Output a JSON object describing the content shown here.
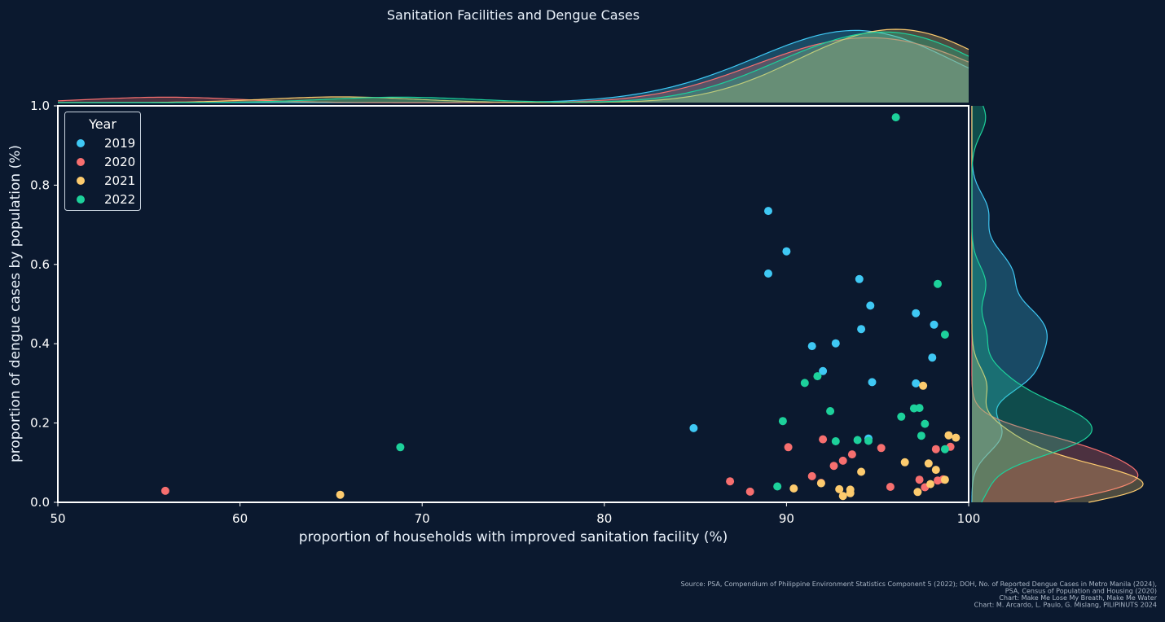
{
  "chart_data": {
    "type": "scatter",
    "title": "Sanitation Facilities and Dengue Cases",
    "xlabel": "proportion of households with improved sanitation facility (%)",
    "ylabel": "proportion of dengue cases by population (%)",
    "xlim": [
      50,
      100
    ],
    "ylim": [
      0,
      1.0
    ],
    "xticks": [
      "50",
      "60",
      "70",
      "80",
      "90",
      "100"
    ],
    "yticks": [
      "0.0",
      "0.2",
      "0.4",
      "0.6",
      "0.8",
      "1.0"
    ],
    "grid": false,
    "legend": {
      "title": "Year",
      "placement": "top-left"
    },
    "marginal_density": {
      "top": true,
      "right": true
    },
    "series": [
      {
        "name": "2019",
        "color": "#3fc8f4",
        "points": [
          [
            84.9,
            0.187
          ],
          [
            89.0,
            0.735
          ],
          [
            90.0,
            0.633
          ],
          [
            89.0,
            0.577
          ],
          [
            94.0,
            0.563
          ],
          [
            94.6,
            0.496
          ],
          [
            97.1,
            0.477
          ],
          [
            98.1,
            0.448
          ],
          [
            94.1,
            0.437
          ],
          [
            91.4,
            0.394
          ],
          [
            92.7,
            0.401
          ],
          [
            98.0,
            0.365
          ],
          [
            92.0,
            0.331
          ],
          [
            94.7,
            0.303
          ],
          [
            97.1,
            0.3
          ],
          [
            94.5,
            0.161
          ]
        ]
      },
      {
        "name": "2020",
        "color": "#f76f6f",
        "points": [
          [
            55.9,
            0.029
          ],
          [
            86.9,
            0.053
          ],
          [
            88.0,
            0.027
          ],
          [
            90.1,
            0.139
          ],
          [
            91.4,
            0.066
          ],
          [
            91.9,
            0.049
          ],
          [
            92.0,
            0.159
          ],
          [
            92.6,
            0.092
          ],
          [
            93.1,
            0.105
          ],
          [
            93.6,
            0.121
          ],
          [
            95.2,
            0.137
          ],
          [
            95.7,
            0.039
          ],
          [
            97.3,
            0.057
          ],
          [
            97.6,
            0.038
          ],
          [
            98.2,
            0.134
          ],
          [
            98.3,
            0.055
          ],
          [
            98.6,
            0.058
          ],
          [
            99.0,
            0.14
          ]
        ]
      },
      {
        "name": "2021",
        "color": "#fdcb6e",
        "points": [
          [
            65.5,
            0.019
          ],
          [
            90.4,
            0.035
          ],
          [
            91.9,
            0.048
          ],
          [
            92.9,
            0.033
          ],
          [
            93.1,
            0.016
          ],
          [
            93.5,
            0.023
          ],
          [
            93.5,
            0.032
          ],
          [
            94.1,
            0.077
          ],
          [
            96.5,
            0.101
          ],
          [
            97.2,
            0.026
          ],
          [
            97.5,
            0.294
          ],
          [
            97.8,
            0.098
          ],
          [
            97.9,
            0.046
          ],
          [
            98.2,
            0.082
          ],
          [
            98.7,
            0.057
          ],
          [
            98.9,
            0.169
          ],
          [
            99.3,
            0.163
          ]
        ]
      },
      {
        "name": "2022",
        "color": "#1dd19b",
        "points": [
          [
            68.8,
            0.139
          ],
          [
            89.5,
            0.04
          ],
          [
            89.8,
            0.205
          ],
          [
            91.0,
            0.301
          ],
          [
            91.7,
            0.318
          ],
          [
            92.4,
            0.23
          ],
          [
            92.7,
            0.154
          ],
          [
            93.9,
            0.157
          ],
          [
            94.5,
            0.155
          ],
          [
            96.0,
            0.971
          ],
          [
            96.3,
            0.216
          ],
          [
            97.0,
            0.237
          ],
          [
            97.3,
            0.238
          ],
          [
            97.4,
            0.168
          ],
          [
            97.6,
            0.198
          ],
          [
            98.3,
            0.551
          ],
          [
            98.7,
            0.423
          ],
          [
            98.7,
            0.134
          ]
        ]
      }
    ]
  },
  "source": [
    "Source: PSA, Compendium of Philippine Environment Statistics Component 5 (2022); DOH, No. of Reported Dengue Cases in Metro Manila (2024),",
    "PSA, Census of Population and Housing (2020)",
    "Chart: Make Me Lose My Breath, Make Me Water",
    "Chart: M. Arcardo, L. Paulo, G. Mislang, PILIPINUTS 2024"
  ]
}
